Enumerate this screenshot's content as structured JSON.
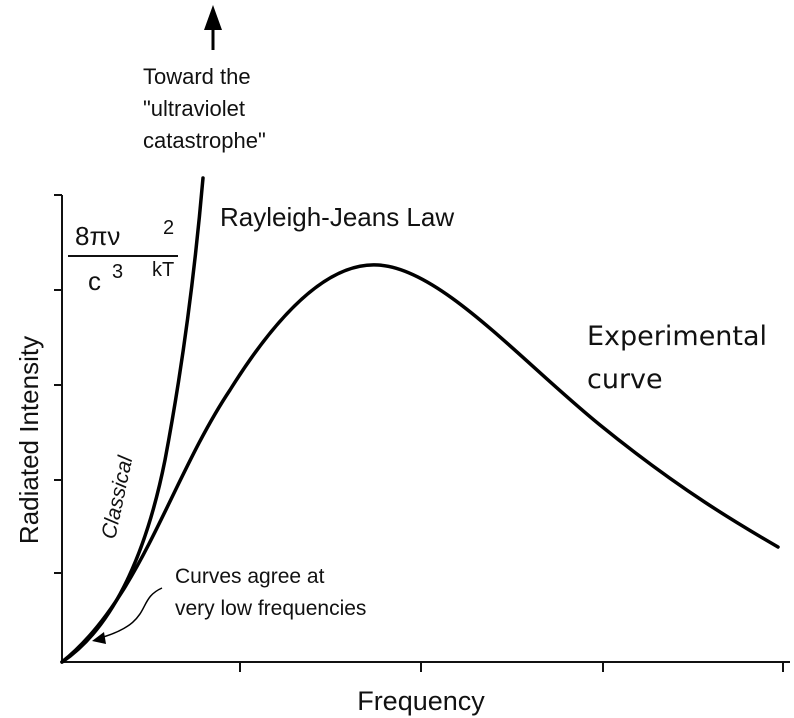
{
  "labels": {
    "uv_note": [
      "Toward the",
      "\"ultraviolet",
      "catastrophe\""
    ],
    "formula": {
      "numerator": "8πν",
      "num_exp": "2",
      "denominator": "c",
      "den_exp": "3",
      "factor": "kT"
    },
    "rayleigh_jeans": "Rayleigh-Jeans Law",
    "experimental": [
      "Experimental",
      "curve"
    ],
    "classical": "Classical",
    "agree_note": [
      "Curves agree at",
      "very low frequencies"
    ],
    "y_axis": "Radiated Intensity",
    "x_axis": "Frequency"
  }
}
